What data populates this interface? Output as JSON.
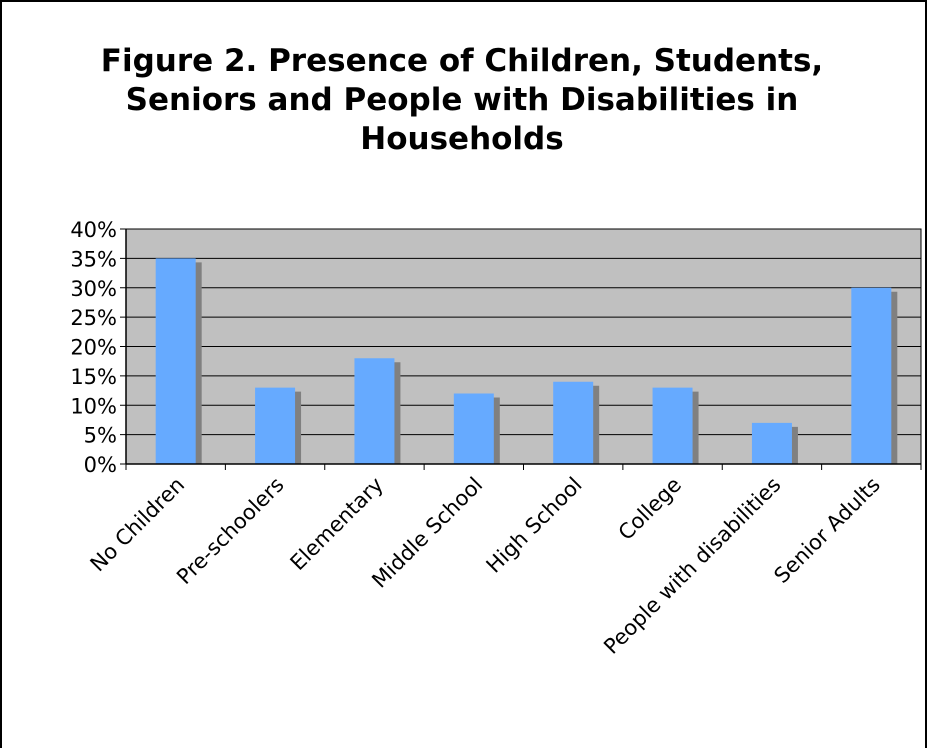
{
  "chart_data": {
    "type": "bar",
    "title": "Figure 2. Presence of Children, Students, Seniors and People with Disabilities in Households",
    "categories": [
      "No Children",
      "Pre-schoolers",
      "Elementary",
      "Middle School",
      "High School",
      "College",
      "People with disabilities",
      "Senior Adults"
    ],
    "values": [
      35,
      13,
      18,
      12,
      14,
      13,
      7,
      30
    ],
    "ylim": [
      0,
      40
    ],
    "yticks": [
      0,
      5,
      10,
      15,
      20,
      25,
      30,
      35,
      40
    ],
    "ytick_labels": [
      "0%",
      "5%",
      "10%",
      "15%",
      "20%",
      "25%",
      "30%",
      "35%",
      "40%"
    ],
    "xlabel": "",
    "ylabel": "",
    "grid": true,
    "legend": "none",
    "colors": {
      "bar": "#66aaff",
      "bar_shadow": "#808080",
      "plot_background": "#c0c0c0",
      "gridline": "#000000"
    }
  }
}
